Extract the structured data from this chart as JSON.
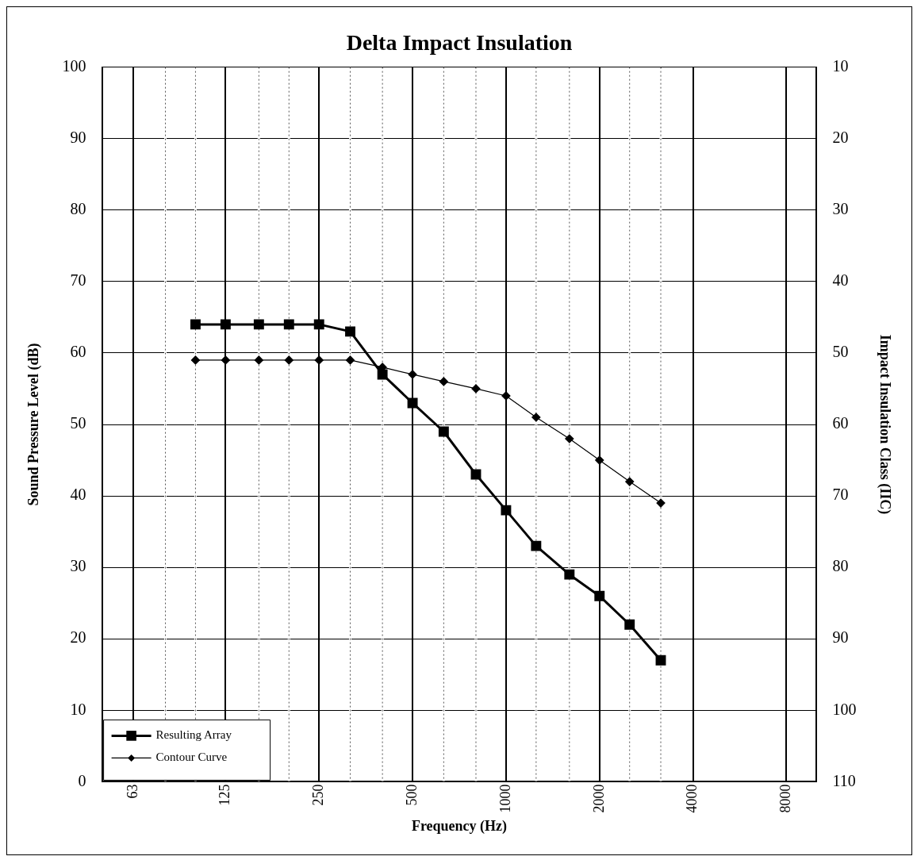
{
  "chart_data": {
    "type": "line",
    "title": "Delta Impact Insulation",
    "xlabel": "Frequency (Hz)",
    "ylabel": "Sound Pressure Level (dB)",
    "y2label": "Impact Insulation Class (IIC)",
    "log": "x",
    "x": [
      100,
      125,
      160,
      200,
      250,
      315,
      400,
      500,
      630,
      800,
      1000,
      1250,
      1600,
      2000,
      2500,
      3150
    ],
    "xlim": [
      50,
      10000
    ],
    "xticks": [
      63,
      {
        "value": 80,
        "label": null
      },
      {
        "value": 100,
        "label": null
      },
      125,
      {
        "value": 160,
        "label": null
      },
      {
        "value": 200,
        "label": null
      },
      250,
      {
        "value": 315,
        "label": null
      },
      {
        "value": 400,
        "label": null
      },
      500,
      {
        "value": 630,
        "label": null
      },
      {
        "value": 800,
        "label": null
      },
      1000,
      {
        "value": 1250,
        "label": null
      },
      {
        "value": 1600,
        "label": null
      },
      2000,
      {
        "value": 2500,
        "label": null
      },
      {
        "value": 3150,
        "label": null
      },
      4000,
      8000
    ],
    "ylim": [
      0,
      100
    ],
    "yticks": [
      0,
      10,
      20,
      30,
      40,
      50,
      60,
      70,
      80,
      90,
      100
    ],
    "y2lim": [
      110,
      10
    ],
    "y2ticks": [
      10,
      20,
      30,
      40,
      50,
      60,
      70,
      80,
      90,
      100,
      110
    ],
    "grid": true,
    "legend": "bottom left",
    "line_style": "solid",
    "series": [
      {
        "name": "Resulting Array",
        "color": "#000000",
        "marker": "square",
        "values": [
          64,
          64,
          64,
          64,
          64,
          63,
          57,
          53,
          49,
          43,
          38,
          33,
          29,
          26,
          22,
          17
        ]
      },
      {
        "name": "Contour Curve",
        "color": "#000000",
        "marker": "diamond",
        "values": [
          59,
          59,
          59,
          59,
          59,
          59,
          58,
          57,
          56,
          55,
          54,
          51,
          48,
          45,
          42,
          39
        ]
      }
    ]
  }
}
